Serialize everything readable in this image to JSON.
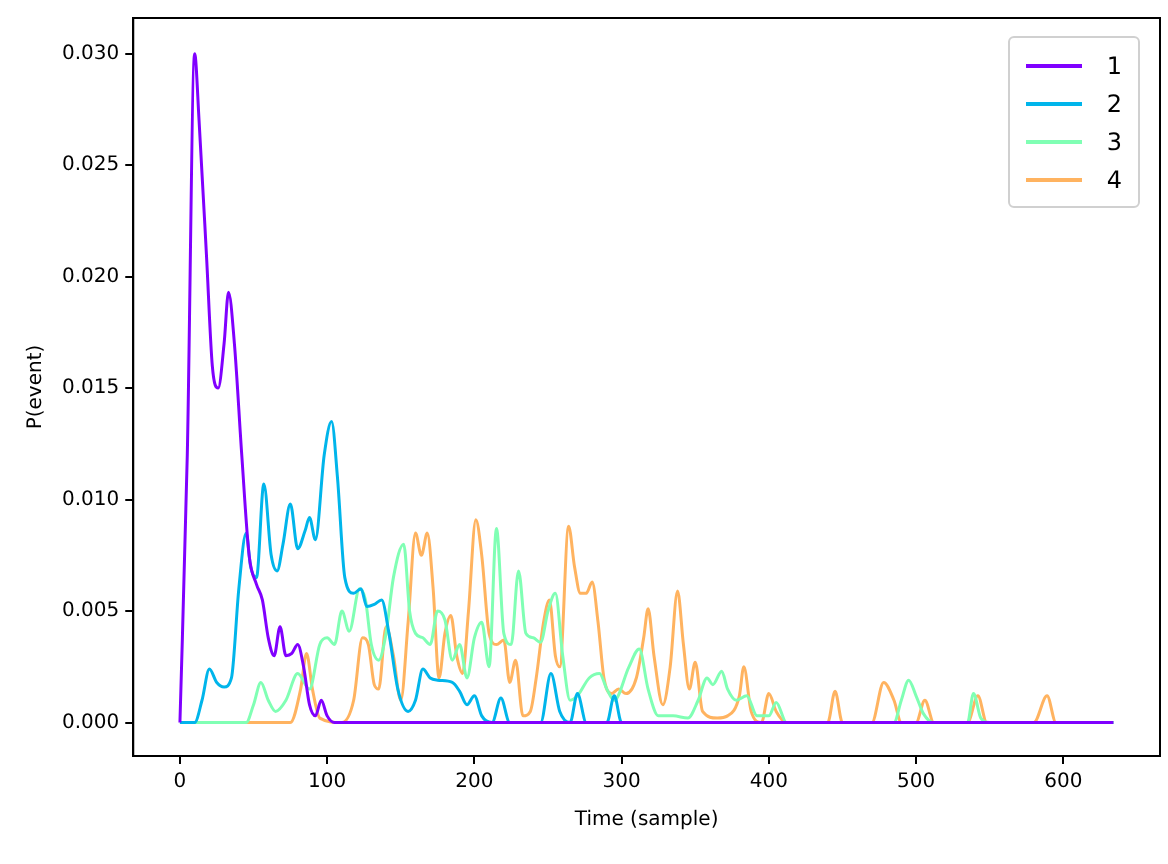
{
  "chart_data": {
    "type": "line",
    "xlabel": "Time (sample)",
    "ylabel": "P(event)",
    "xlim": [
      -31.7,
      665.7
    ],
    "ylim": [
      -0.0015,
      0.0316
    ],
    "xticks": [
      0,
      100,
      200,
      300,
      400,
      500,
      600
    ],
    "yticks": [
      {
        "value": 0,
        "label": "0.000"
      },
      {
        "value": 0.005,
        "label": "0.005"
      },
      {
        "value": 0.01,
        "label": "0.010"
      },
      {
        "value": 0.015,
        "label": "0.015"
      },
      {
        "value": 0.02,
        "label": "0.020"
      },
      {
        "value": 0.025,
        "label": "0.025"
      },
      {
        "value": 0.03,
        "label": "0.030"
      }
    ],
    "grid": false,
    "legend": "top right",
    "marker": "none",
    "line_style": "solid",
    "series": [
      {
        "name": "1",
        "color": "#8000ff",
        "x": [
          0,
          5,
          10,
          13,
          18,
          22,
          26,
          30,
          33,
          37,
          42,
          47,
          52,
          56,
          60,
          64,
          68,
          72,
          76,
          80,
          84,
          88,
          92,
          96,
          100,
          105,
          634
        ],
        "values": [
          0,
          0.012,
          0.03,
          0.027,
          0.021,
          0.016,
          0.015,
          0.017,
          0.0193,
          0.017,
          0.012,
          0.0075,
          0.0062,
          0.0055,
          0.0038,
          0.003,
          0.0043,
          0.003,
          0.0031,
          0.0035,
          0.0025,
          0.0008,
          0.0003,
          0.001,
          0.0003,
          0,
          0
        ]
      },
      {
        "name": "2",
        "color": "#00b5eb",
        "x": [
          0,
          10,
          15,
          20,
          25,
          30,
          35,
          40,
          45,
          48,
          52,
          57,
          62,
          66,
          70,
          75,
          80,
          85,
          88,
          92,
          98,
          103,
          107,
          112,
          118,
          123,
          127,
          132,
          137,
          142,
          148,
          155,
          160,
          165,
          170,
          175,
          185,
          190,
          195,
          200,
          205,
          212,
          218,
          224,
          245,
          252,
          258,
          265,
          270,
          276,
          290,
          295,
          300,
          634
        ],
        "values": [
          0,
          0,
          0.001,
          0.0024,
          0.0018,
          0.0016,
          0.002,
          0.006,
          0.0085,
          0.007,
          0.0065,
          0.0107,
          0.0075,
          0.0068,
          0.008,
          0.0098,
          0.0078,
          0.0086,
          0.0092,
          0.0082,
          0.012,
          0.0135,
          0.011,
          0.0065,
          0.0058,
          0.006,
          0.0052,
          0.0053,
          0.0055,
          0.004,
          0.0015,
          0.0005,
          0.001,
          0.0024,
          0.002,
          0.0019,
          0.0018,
          0.0014,
          0.0008,
          0.0012,
          0.0003,
          0,
          0.0011,
          0,
          0,
          0.0022,
          0.0005,
          0,
          0.0013,
          0,
          0,
          0.0012,
          0,
          0
        ]
      },
      {
        "name": "3",
        "color": "#80ffb4",
        "x": [
          0,
          45,
          50,
          55,
          60,
          65,
          72,
          80,
          88,
          95,
          100,
          105,
          110,
          115,
          122,
          126,
          130,
          135,
          140,
          145,
          152,
          156,
          160,
          165,
          170,
          175,
          180,
          185,
          190,
          195,
          200,
          205,
          210,
          215,
          220,
          225,
          230,
          235,
          240,
          245,
          250,
          255,
          260,
          265,
          270,
          278,
          285,
          290,
          295,
          305,
          312,
          318,
          325,
          335,
          345,
          352,
          358,
          362,
          368,
          372,
          378,
          385,
          392,
          400,
          405,
          412,
          485,
          490,
          495,
          500,
          505,
          512,
          535,
          539,
          544,
          550,
          634
        ],
        "values": [
          0,
          0,
          0.0008,
          0.0018,
          0.001,
          0.0005,
          0.001,
          0.0022,
          0.0015,
          0.0035,
          0.0038,
          0.0035,
          0.005,
          0.0041,
          0.006,
          0.0055,
          0.0035,
          0.0028,
          0.004,
          0.0065,
          0.008,
          0.005,
          0.004,
          0.0038,
          0.0035,
          0.005,
          0.0046,
          0.0028,
          0.0035,
          0.002,
          0.0038,
          0.0045,
          0.0025,
          0.0087,
          0.004,
          0.0035,
          0.0068,
          0.004,
          0.0038,
          0.0036,
          0.005,
          0.0058,
          0.003,
          0.001,
          0.0012,
          0.002,
          0.0022,
          0.0015,
          0.001,
          0.0025,
          0.0033,
          0.0015,
          0.0003,
          0.0003,
          0.0002,
          0.001,
          0.002,
          0.0017,
          0.0023,
          0.0015,
          0.001,
          0.0012,
          0.0003,
          0.0003,
          0.0009,
          0,
          0,
          0.001,
          0.0019,
          0.0012,
          0.0004,
          0,
          0,
          0.0013,
          0.0002,
          0,
          0
        ]
      },
      {
        "name": "4",
        "color": "#ffb360",
        "x": [
          0,
          75,
          82,
          86,
          90,
          95,
          110,
          118,
          124,
          128,
          132,
          135,
          140,
          145,
          150,
          155,
          160,
          164,
          168,
          172,
          176,
          180,
          184,
          188,
          192,
          196,
          201,
          205,
          210,
          215,
          220,
          224,
          228,
          233,
          238,
          242,
          247,
          251,
          255,
          258,
          264,
          268,
          272,
          276,
          280,
          284,
          288,
          293,
          298,
          303,
          310,
          315,
          318,
          322,
          328,
          333,
          338,
          342,
          346,
          350,
          355,
          365,
          372,
          380,
          383,
          388,
          395,
          400,
          405,
          412,
          440,
          445,
          450,
          470,
          478,
          485,
          490,
          500,
          506,
          512,
          535,
          542,
          548,
          580,
          589,
          595,
          634
        ],
        "values": [
          0,
          0,
          0.0015,
          0.0031,
          0.0015,
          0.0002,
          0,
          0.001,
          0.0038,
          0.0035,
          0.0017,
          0.0015,
          0.0043,
          0.003,
          0.001,
          0.0045,
          0.0085,
          0.0075,
          0.0085,
          0.006,
          0.002,
          0.004,
          0.0048,
          0.003,
          0.0022,
          0.005,
          0.0091,
          0.0075,
          0.004,
          0.0035,
          0.0037,
          0.0018,
          0.0028,
          0.0003,
          0.0005,
          0.002,
          0.0045,
          0.0055,
          0.003,
          0.0025,
          0.0088,
          0.007,
          0.0058,
          0.0058,
          0.0063,
          0.0045,
          0.002,
          0.0013,
          0.0015,
          0.0013,
          0.002,
          0.0038,
          0.0051,
          0.003,
          0.0008,
          0.0025,
          0.0059,
          0.0035,
          0.0015,
          0.0027,
          0.0005,
          0.0002,
          0.0003,
          0.0012,
          0.0025,
          0.0005,
          0,
          0.0013,
          0.0005,
          0,
          0,
          0.0014,
          0,
          0,
          0.0018,
          0.001,
          0,
          0,
          0.001,
          0,
          0,
          0.0012,
          0,
          0,
          0.0012,
          0,
          0
        ]
      }
    ]
  }
}
